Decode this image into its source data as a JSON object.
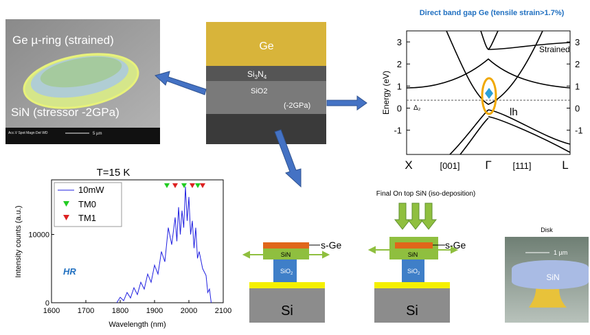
{
  "sem_ring": {
    "label_ring": "Ge µ-ring (strained)",
    "label_sin": "SiN (stressor -2GPa)",
    "info": "Acc.V  Spot Magn   Det  WD",
    "scale": "5 µm"
  },
  "cross_section": {
    "ge": "Ge",
    "si3n4": [
      "Si",
      "3",
      "N",
      "4"
    ],
    "sio2": "SiO2",
    "stress": "(-2GPa)"
  },
  "band": {
    "title": "Direct band gap Ge (tensile strain>1.7%)",
    "ylabel": "Energy (eV)",
    "ylim": [
      -2.1,
      3.5
    ],
    "yticks": [
      -1,
      0,
      1,
      2,
      3
    ],
    "xlabels": [
      "X",
      "[001]",
      "Γ",
      "[111]",
      "L"
    ],
    "strained": "Strained",
    "lh": "lh",
    "delta": "Δ₂"
  },
  "spectrum": {
    "title": "T=15 K",
    "xlabel": "Wavelength (nm)",
    "ylabel": "Intensity counts (a.u.)",
    "annotation": "HR",
    "xlim": [
      1600,
      2100
    ],
    "ylim": [
      0,
      18000
    ],
    "xticks": [
      1600,
      1700,
      1800,
      1900,
      2000,
      2100
    ],
    "yticks": [
      0,
      10000
    ],
    "series": [
      {
        "name": "10mW",
        "color": "#1f1fe0",
        "x": [
          1790,
          1800,
          1810,
          1820,
          1830,
          1840,
          1850,
          1860,
          1870,
          1880,
          1890,
          1900,
          1910,
          1920,
          1930,
          1940,
          1950,
          1960,
          1965,
          1970,
          1975,
          1980,
          1985,
          1990,
          1995,
          2000,
          2005,
          2010,
          2015,
          2020,
          2025,
          2030,
          2040,
          2050,
          2055,
          2060,
          2065
        ],
        "values": [
          0,
          800,
          300,
          1500,
          700,
          2200,
          1200,
          3000,
          2000,
          4200,
          3000,
          5500,
          4200,
          7500,
          6000,
          11000,
          8500,
          12500,
          9000,
          14000,
          10000,
          13500,
          11000,
          17000,
          12000,
          15500,
          10000,
          12000,
          8000,
          11000,
          6500,
          7500,
          5000,
          4000,
          1500,
          2000,
          0
        ]
      }
    ],
    "markers": [
      {
        "name": "TM0",
        "color": "#22cc22",
        "x": [
          1936,
          1986,
          2026
        ]
      },
      {
        "name": "TM1",
        "color": "#dd2222",
        "x": [
          1960,
          2010,
          2040
        ]
      }
    ]
  },
  "schematic1": {
    "sge": "s-Ge",
    "sin": "SiN",
    "sio2": [
      "SiO",
      "2"
    ],
    "si": "Si"
  },
  "schematic2": {
    "title": "Final On top SiN (iso-deposition)",
    "sge": "s-Ge",
    "sin": "SiN",
    "sio2": [
      "SiO",
      "2"
    ],
    "si": "Si"
  },
  "disk": {
    "title": "Disk",
    "scale": "1 µm",
    "label": "SiN"
  }
}
